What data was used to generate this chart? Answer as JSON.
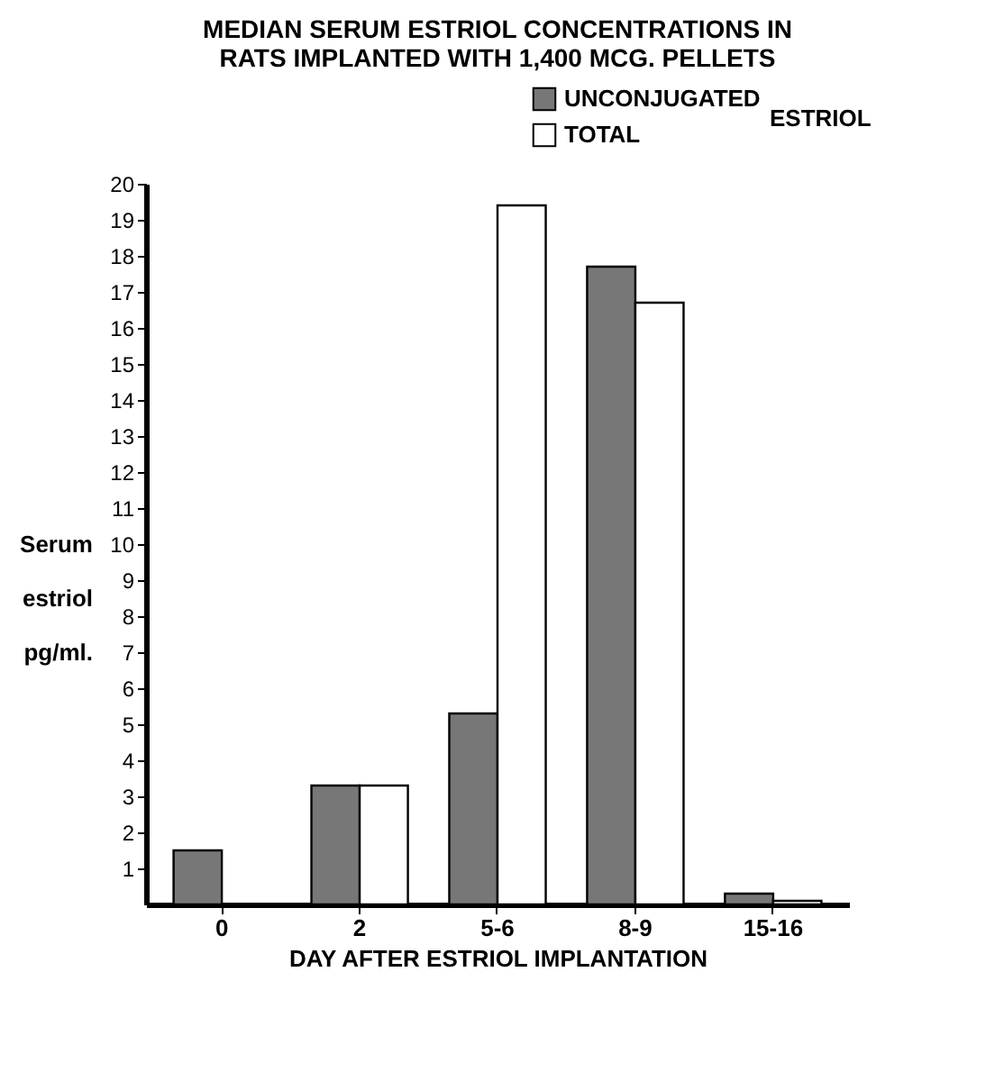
{
  "chart_data": {
    "type": "bar",
    "title": "MEDIAN SERUM ESTRIOL CONCENTRATIONS IN RATS IMPLANTED WITH 1,400 MCG. PELLETS",
    "xlabel": "DAY AFTER ESTRIOL IMPLANTATION",
    "ylabel": "Serum estriol pg/ml.",
    "legend_title": "ESTRIOL",
    "categories": [
      "0",
      "2",
      "5-6",
      "8-9",
      "15-16"
    ],
    "series": [
      {
        "name": "UNCONJUGATED",
        "color": "#777777",
        "values": [
          1.5,
          3.3,
          5.3,
          17.7,
          0.3
        ]
      },
      {
        "name": "TOTAL",
        "color": "#ffffff",
        "values": [
          null,
          3.3,
          19.4,
          16.7,
          0.1
        ]
      }
    ],
    "ylim": [
      0,
      20
    ],
    "yticks": [
      1,
      2,
      3,
      4,
      5,
      6,
      7,
      8,
      9,
      10,
      11,
      12,
      13,
      14,
      15,
      16,
      17,
      18,
      19,
      20
    ],
    "grid": false,
    "legend": "top right"
  }
}
